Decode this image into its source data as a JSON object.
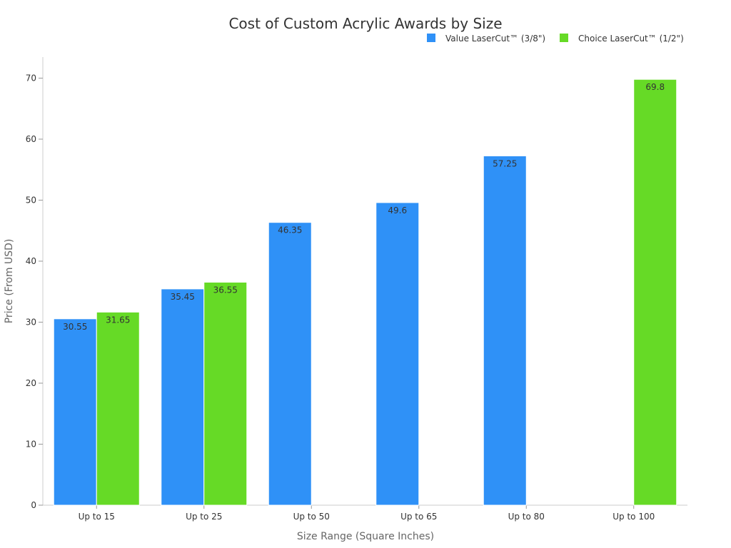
{
  "chart_data": {
    "type": "bar",
    "title": "Cost of Custom Acrylic Awards by Size",
    "xlabel": "Size Range (Square Inches)",
    "ylabel": "Price (From USD)",
    "ylim": [
      0,
      70
    ],
    "yticks": [
      0,
      10,
      20,
      30,
      40,
      50,
      60,
      70
    ],
    "grid": false,
    "legend_position": "top-right",
    "categories": [
      "Up to 15",
      "Up to 25",
      "Up to 50",
      "Up to 65",
      "Up to 80",
      "Up to 100"
    ],
    "series": [
      {
        "name": "Value LaserCut™ (3/8\")",
        "color": "#2f91f7",
        "values": [
          30.55,
          35.45,
          46.35,
          49.6,
          57.25,
          null
        ]
      },
      {
        "name": "Choice LaserCut™ (1/2\")",
        "color": "#66da26",
        "values": [
          31.65,
          36.55,
          null,
          null,
          null,
          69.8
        ]
      }
    ]
  }
}
